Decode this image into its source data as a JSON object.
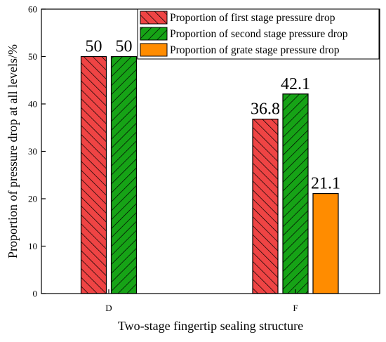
{
  "chart_data": {
    "type": "bar",
    "title": "",
    "xlabel": "Two-stage fingertip sealing structure",
    "ylabel": "Proportion of pressure drop at all levels/%",
    "categories": [
      "D",
      "F"
    ],
    "ylim": [
      0,
      60
    ],
    "yticks": [
      0,
      10,
      20,
      30,
      40,
      50,
      60
    ],
    "grid": false,
    "legend_position": "top-right",
    "series": [
      {
        "name": "Proportion of first stage pressure drop",
        "values": [
          50,
          36.8
        ],
        "labels": [
          "50",
          "36.8"
        ],
        "color": "#ef4444",
        "pattern": "hatch"
      },
      {
        "name": "Proportion of second stage pressure drop",
        "values": [
          50,
          42.1
        ],
        "labels": [
          "50",
          "42.1"
        ],
        "color": "#16a316",
        "pattern": "hatch"
      },
      {
        "name": "Proportion of grate stage pressure drop",
        "values": [
          null,
          21.1
        ],
        "labels": [
          null,
          "21.1"
        ],
        "color": "#ff8c00",
        "pattern": "solid"
      }
    ]
  }
}
